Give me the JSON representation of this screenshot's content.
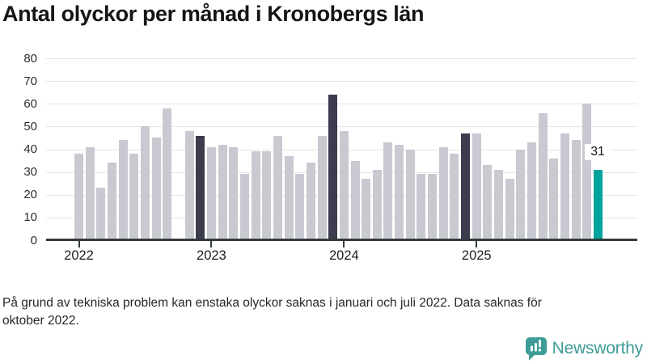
{
  "title": "Antal olyckor per månad i Kronobergs län",
  "footnote": "På grund av tekniska problem kan enstaka olyckor saknas i januari och juli 2022. Data saknas för oktober 2022.",
  "logo": {
    "text": "Newsworthy",
    "color": "#3e9c97"
  },
  "chart_data": {
    "type": "bar",
    "title": "Antal olyckor per månad i Kronobergs län",
    "x_unit": "month",
    "years": [
      {
        "label": "2022",
        "values": [
          38,
          41,
          23,
          34,
          44,
          38,
          50,
          45,
          58,
          null,
          48,
          46
        ]
      },
      {
        "label": "2023",
        "values": [
          41,
          42,
          41,
          29,
          39,
          39,
          46,
          37,
          29,
          34,
          46,
          64
        ]
      },
      {
        "label": "2024",
        "values": [
          48,
          35,
          27,
          31,
          43,
          42,
          40,
          29,
          29,
          41,
          38,
          47
        ]
      },
      {
        "label": "2025",
        "values": [
          47,
          33,
          31,
          27,
          40,
          43,
          56,
          36,
          47,
          44,
          60,
          31
        ]
      }
    ],
    "missing_months": [
      "2022-10"
    ],
    "highlights": {
      "dark_indices": [
        11,
        23,
        35
      ],
      "current_index": 47
    },
    "annotation": {
      "label": "31"
    },
    "ylim": [
      0,
      80
    ],
    "y_ticks": [
      0,
      10,
      20,
      30,
      40,
      50,
      60,
      70,
      80
    ],
    "grid": "horizontal",
    "legend": "none",
    "colors": {
      "bar": "#c9c9d2",
      "bar_dark": "#3c3c4e",
      "bar_current": "#00a39c",
      "grid": "#e6e6e8",
      "axis": "#333b3b",
      "text": "#2d2d2d"
    }
  }
}
